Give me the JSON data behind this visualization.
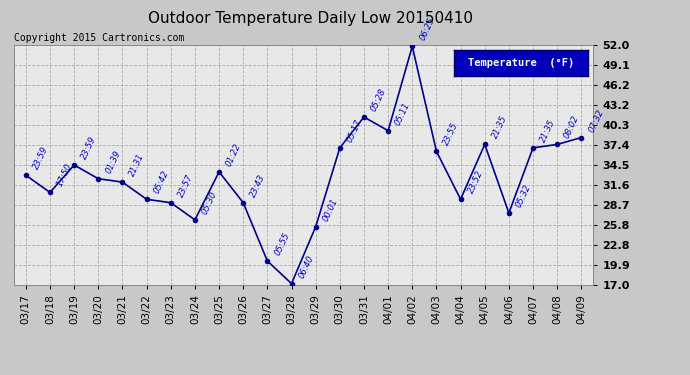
{
  "title": "Outdoor Temperature Daily Low 20150410",
  "copyright": "Copyright 2015 Cartronics.com",
  "legend_label": "Temperature  (°F)",
  "bg_color": "#c8c8c8",
  "plot_bg_color": "#e8e8e8",
  "line_color": "#00008b",
  "marker_color": "#00008b",
  "x_labels": [
    "03/17",
    "03/18",
    "03/19",
    "03/20",
    "03/21",
    "03/22",
    "03/23",
    "03/24",
    "03/25",
    "03/26",
    "03/27",
    "03/28",
    "03/29",
    "03/30",
    "03/31",
    "04/01",
    "04/02",
    "04/03",
    "04/04",
    "04/05",
    "04/06",
    "04/07",
    "04/08",
    "04/09"
  ],
  "y_values": [
    33.0,
    30.5,
    34.5,
    32.5,
    32.0,
    29.5,
    29.0,
    26.5,
    33.5,
    29.0,
    20.5,
    17.2,
    25.5,
    37.0,
    41.5,
    39.5,
    51.8,
    36.5,
    29.5,
    37.5,
    27.5,
    37.0,
    37.5,
    38.5
  ],
  "point_labels": [
    "23:59",
    "17:50",
    "23:59",
    "01:39",
    "21:31",
    "05:42",
    "23:57",
    "05:30",
    "01:22",
    "23:43",
    "05:55",
    "06:40",
    "00:01",
    "05:17",
    "05:28",
    "05:11",
    "06:25",
    "23:55",
    "23:52",
    "21:35",
    "05:32",
    "21:35",
    "08:02",
    "07:32"
  ],
  "ylim": [
    17.0,
    52.0
  ],
  "yticks": [
    17.0,
    19.9,
    22.8,
    25.8,
    28.7,
    31.6,
    34.5,
    37.4,
    40.3,
    43.2,
    46.2,
    49.1,
    52.0
  ],
  "grid_color": "#aaaaaa",
  "font_color": "#0000cc",
  "label_color": "#0000cc",
  "title_color": "#000000",
  "copyright_color": "#000000",
  "tick_label_color": "#000000",
  "grid_linestyle": "--",
  "grid_linewidth": 0.6,
  "line_width": 1.2,
  "marker_size": 3.0,
  "point_label_fontsize": 6.0,
  "point_label_rotation": 65,
  "title_fontsize": 11,
  "copyright_fontsize": 7,
  "tick_fontsize": 7.5,
  "ytick_fontsize": 8
}
